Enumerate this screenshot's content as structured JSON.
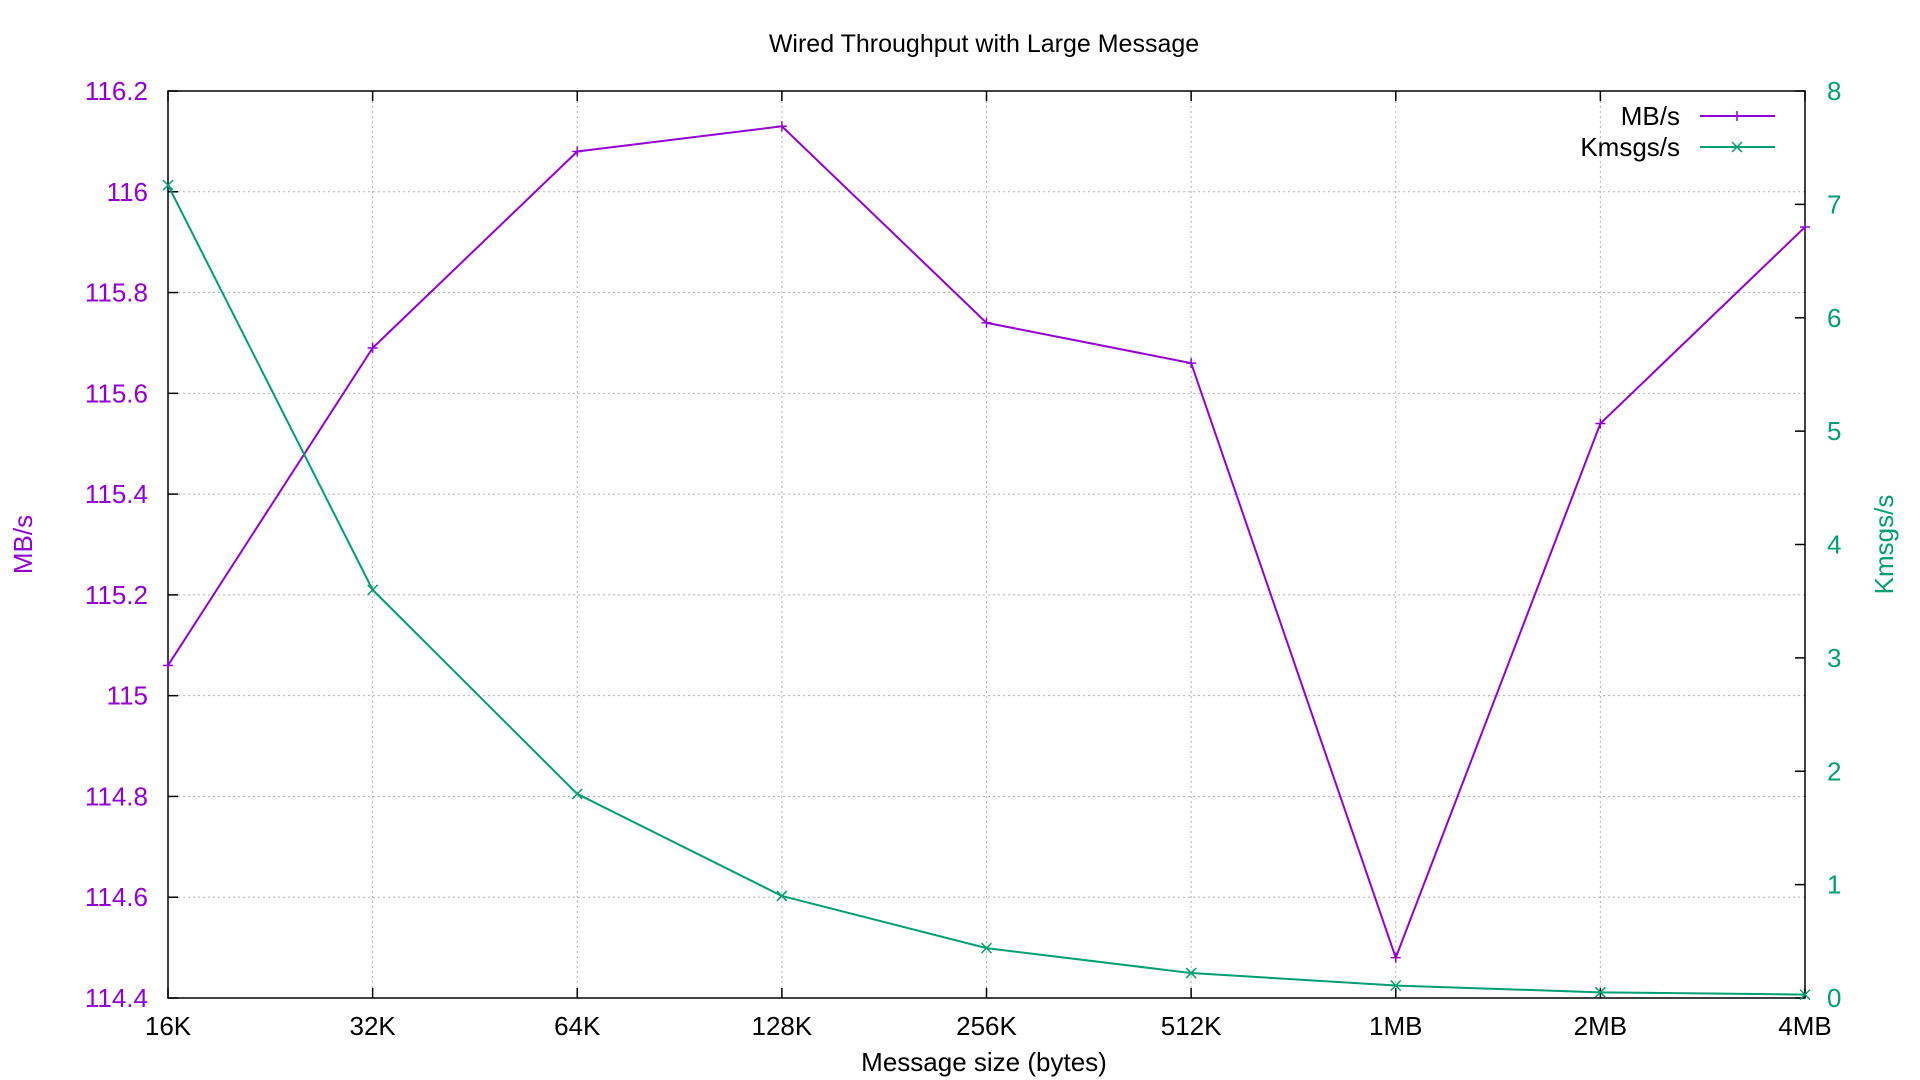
{
  "chart_data": {
    "type": "line",
    "title": "Wired Throughput with Large Message",
    "xlabel": "Message size (bytes)",
    "ylabel": "MB/s",
    "y2label": "Kmsgs/s",
    "categories": [
      "16K",
      "32K",
      "64K",
      "128K",
      "256K",
      "512K",
      "1MB",
      "2MB",
      "4MB"
    ],
    "ylim": [
      114.4,
      116.2
    ],
    "y2lim": [
      0,
      8
    ],
    "yticks": [
      "114.4",
      "114.6",
      "114.8",
      "115",
      "115.2",
      "115.4",
      "115.6",
      "115.8",
      "116",
      "116.2"
    ],
    "y2ticks": [
      "0",
      "1",
      "2",
      "3",
      "4",
      "5",
      "6",
      "7",
      "8"
    ],
    "grid": true,
    "legend_position": "top-right",
    "series": [
      {
        "name": "MB/s",
        "axis": "left",
        "color": "#9400D3",
        "marker": "plus",
        "values": [
          115.06,
          115.69,
          116.08,
          116.13,
          115.74,
          115.66,
          114.48,
          115.54,
          115.93
        ]
      },
      {
        "name": "Kmsgs/s",
        "axis": "right",
        "color": "#009E73",
        "marker": "cross",
        "values": [
          7.17,
          3.6,
          1.8,
          0.9,
          0.44,
          0.22,
          0.11,
          0.05,
          0.03
        ]
      }
    ]
  }
}
